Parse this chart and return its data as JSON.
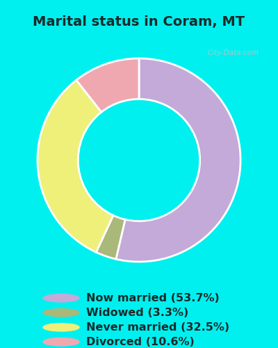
{
  "title": "Marital status in Coram, MT",
  "values": [
    53.7,
    3.3,
    32.5,
    10.6
  ],
  "colors": [
    "#c4aad8",
    "#aab87a",
    "#eef07a",
    "#f0a8b0"
  ],
  "legend_labels": [
    "Now married (53.7%)",
    "Widowed (3.3%)",
    "Never married (32.5%)",
    "Divorced (10.6%)"
  ],
  "bg_cyan": "#00f0f0",
  "bg_green_light": "#d8ede0",
  "bg_green_dark": "#c8e8d0",
  "watermark": "City-Data.com",
  "title_fontsize": 14,
  "legend_fontsize": 11.5
}
